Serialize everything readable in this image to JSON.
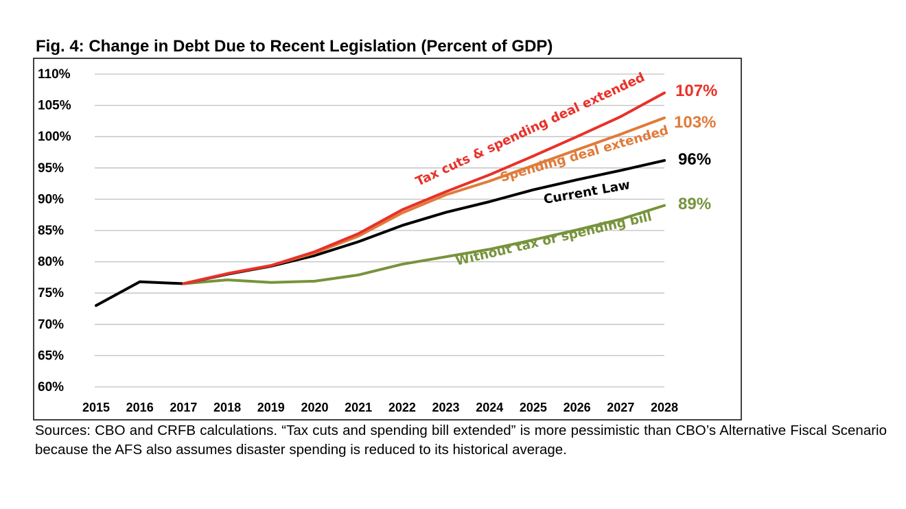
{
  "chart_data": {
    "type": "line",
    "title": "Fig. 4: Change in Debt Due to Recent Legislation (Percent of GDP)",
    "xlabel": "",
    "ylabel": "",
    "x": [
      2015,
      2016,
      2017,
      2018,
      2019,
      2020,
      2021,
      2022,
      2023,
      2024,
      2025,
      2026,
      2027,
      2028
    ],
    "x_tick_labels": [
      "2015",
      "2016",
      "2017",
      "2018",
      "2019",
      "2020",
      "2021",
      "2022",
      "2023",
      "2024",
      "2025",
      "2026",
      "2027",
      "2028"
    ],
    "ylim": [
      60,
      110
    ],
    "y_ticks": [
      60,
      65,
      70,
      75,
      80,
      85,
      90,
      95,
      100,
      105,
      110
    ],
    "y_tick_labels": [
      "60%",
      "65%",
      "70%",
      "75%",
      "80%",
      "85%",
      "90%",
      "95%",
      "100%",
      "105%",
      "110%"
    ],
    "grid": true,
    "series": [
      {
        "name": "Without tax or spending bill",
        "color": "#77933c",
        "x": [
          2017,
          2018,
          2019,
          2020,
          2021,
          2022,
          2023,
          2024,
          2025,
          2026,
          2027,
          2028
        ],
        "values": [
          76.5,
          77.1,
          76.7,
          76.9,
          77.9,
          79.6,
          80.8,
          82.0,
          83.5,
          85.1,
          86.8,
          89.0
        ],
        "end_label": "89%",
        "label_angle": -13
      },
      {
        "name": "Current Law",
        "color": "#000000",
        "x": [
          2015,
          2016,
          2017,
          2018,
          2019,
          2020,
          2021,
          2022,
          2023,
          2024,
          2025,
          2026,
          2027,
          2028
        ],
        "values": [
          73.0,
          76.8,
          76.5,
          78.0,
          79.3,
          81.0,
          83.2,
          85.8,
          87.9,
          89.6,
          91.5,
          93.1,
          94.6,
          96.2
        ],
        "end_label": "96%",
        "label_angle": -10
      },
      {
        "name": "Spending deal extended",
        "color": "#e07b39",
        "x": [
          2017,
          2018,
          2019,
          2020,
          2021,
          2022,
          2023,
          2024,
          2025,
          2026,
          2027,
          2028
        ],
        "values": [
          76.5,
          78.1,
          79.4,
          81.4,
          84.1,
          87.8,
          90.7,
          92.9,
          95.4,
          97.9,
          100.4,
          103.0
        ],
        "end_label": "103%",
        "label_angle": -16
      },
      {
        "name": "Tax cuts & spending deal extended",
        "color": "#e8312a",
        "x": [
          2017,
          2018,
          2019,
          2020,
          2021,
          2022,
          2023,
          2024,
          2025,
          2026,
          2027,
          2028
        ],
        "values": [
          76.5,
          78.1,
          79.4,
          81.6,
          84.5,
          88.3,
          91.2,
          93.9,
          96.9,
          100.0,
          103.2,
          107.0
        ],
        "end_label": "107%",
        "label_angle": -25
      }
    ]
  },
  "source_note": "Sources: CBO and CRFB calculations. “Tax cuts and spending bill extended” is more pessimistic than CBO’s Alternative Fiscal Scenario because the AFS also assumes disaster spending is reduced to its historical average."
}
